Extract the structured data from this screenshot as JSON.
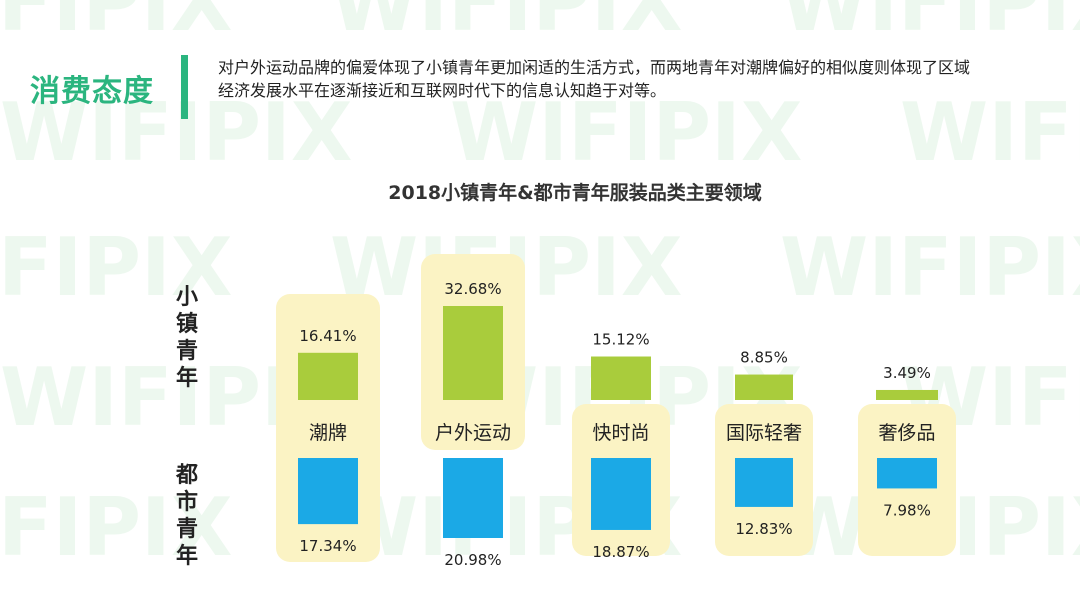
{
  "section_title": "消费态度",
  "intro_text": "对户外运动品牌的偏爱体现了小镇青年更加闲适的生活方式，而两地青年对潮牌偏好的相似度则体现了区域经济发展水平在逐渐接近和互联网时代下的信息认知趋于对等。",
  "colors": {
    "accent": "#2bb57f",
    "small_town": "#a9cc3c",
    "urban": "#1ba9e6",
    "highlight": "#fbf3c4",
    "watermark": "#edf8ef"
  },
  "watermark_text": "WIFIPIX",
  "chart_data": {
    "type": "bar",
    "title": "2018小镇青年&都市青年服装品类主要领域",
    "categories": [
      "潮牌",
      "户外运动",
      "快时尚",
      "国际轻奢",
      "奢侈品"
    ],
    "series": [
      {
        "name": "小镇青年",
        "values": [
          16.41,
          32.68,
          15.12,
          8.85,
          3.49
        ],
        "labels": [
          "16.41%",
          "32.68%",
          "15.12%",
          "8.85%",
          "3.49%"
        ]
      },
      {
        "name": "都市青年",
        "values": [
          17.34,
          20.98,
          18.87,
          12.83,
          7.98
        ],
        "labels": [
          "17.34%",
          "20.98%",
          "18.87%",
          "12.83%",
          "7.98%"
        ]
      }
    ],
    "highlight": [
      "both",
      "small_town",
      "urban",
      "urban",
      "urban"
    ]
  }
}
